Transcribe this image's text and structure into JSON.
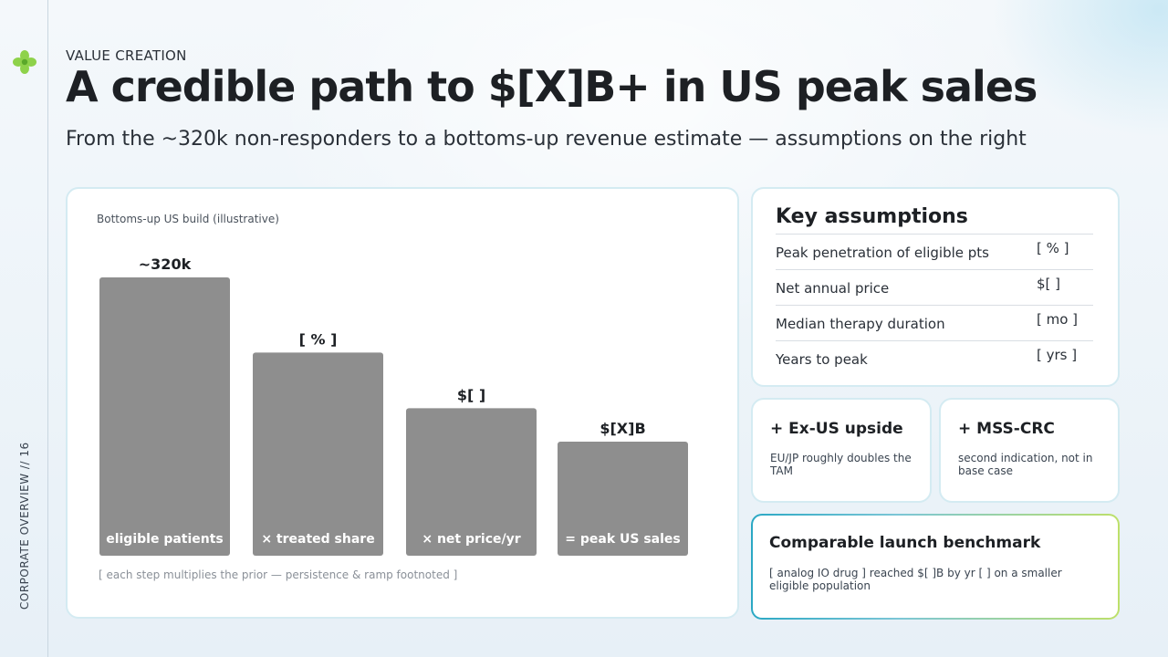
{
  "slide": {
    "side_label": "CORPORATE OVERVIEW // 16",
    "eyebrow": "VALUE CREATION",
    "title": "A credible path to $[X]B+ in US peak sales",
    "subtitle": "From the ~320k non-responders to a bottoms-up revenue estimate — assumptions on the right"
  },
  "chart_card": {
    "caption": "Bottoms-up US build (illustrative)",
    "note": "[ each step multiplies the prior — persistence & ramp footnoted ]"
  },
  "chart_data": {
    "type": "bar",
    "categories": [
      "eligible patients",
      "× treated share",
      "× net price/yr",
      "= peak US sales"
    ],
    "values": [
      100,
      73,
      53,
      41
    ],
    "value_labels": [
      "~320k",
      "[ % ]",
      "$[ ]",
      "$[X]B"
    ],
    "ylim": [
      0,
      100
    ],
    "bar_color": "#8e8e8e",
    "grid": false
  },
  "assumptions": {
    "title": "Key assumptions",
    "rows": [
      {
        "label": "Peak penetration of eligible pts",
        "value": "[ % ]"
      },
      {
        "label": "Net annual price",
        "value": "$[ ]"
      },
      {
        "label": "Median therapy duration",
        "value": "[ mo ]"
      },
      {
        "label": "Years to peak",
        "value": "[ yrs ]"
      }
    ]
  },
  "upsides": [
    {
      "title": "+ Ex-US upside",
      "body": "EU/JP roughly doubles the TAM"
    },
    {
      "title": "+ MSS-CRC",
      "body": "second indication, not in base case"
    }
  ],
  "benchmark": {
    "title": "Comparable launch benchmark",
    "body": "[ analog IO drug ] reached $[ ]B by yr [ ] on a smaller eligible population"
  },
  "logo": {
    "icon": "green-flower-icon",
    "color": "#8ed24a"
  }
}
